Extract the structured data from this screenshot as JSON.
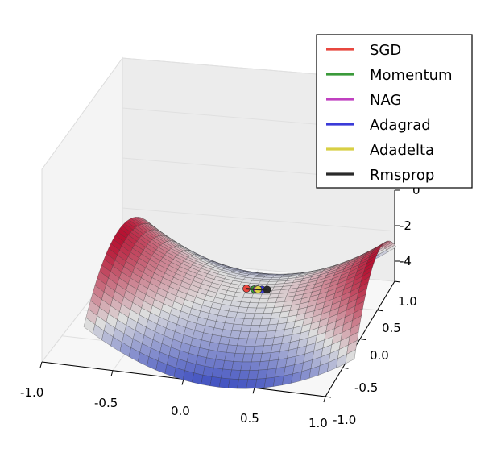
{
  "chart_data": {
    "type": "surface",
    "title": "",
    "xlabel": "",
    "ylabel": "",
    "zlabel": "",
    "surface": "saddle",
    "colormap": "coolwarm",
    "xlim": [
      -1.0,
      1.0
    ],
    "ylim": [
      -1.0,
      1.0
    ],
    "zlim": [
      -5,
      1
    ],
    "grid": true,
    "x_ticks": [
      "-1.0",
      "-0.5",
      "0.0",
      "0.5",
      "1.0"
    ],
    "y_ticks": [
      "-1.0",
      "-0.5",
      "0.0",
      "0.5",
      "1.0"
    ],
    "z_ticks": [
      "0",
      "-2",
      "-4"
    ],
    "legend_position": "top-right",
    "series": [
      {
        "name": "SGD",
        "color": "#e8473f",
        "points": [
          [
            0.0,
            0.0
          ]
        ]
      },
      {
        "name": "Momentum",
        "color": "#3a9a3a",
        "points": [
          [
            0.06,
            0.0
          ]
        ]
      },
      {
        "name": "NAG",
        "color": "#c040c0",
        "points": [
          [
            0.08,
            0.0
          ]
        ]
      },
      {
        "name": "Adagrad",
        "color": "#3a3ad8",
        "points": [
          [
            0.12,
            0.0
          ]
        ]
      },
      {
        "name": "Adadelta",
        "color": "#d8cf44",
        "points": [
          [
            0.09,
            0.0
          ]
        ]
      },
      {
        "name": "Rmsprop",
        "color": "#2a2a2a",
        "points": [
          [
            0.16,
            0.0
          ]
        ]
      }
    ]
  }
}
